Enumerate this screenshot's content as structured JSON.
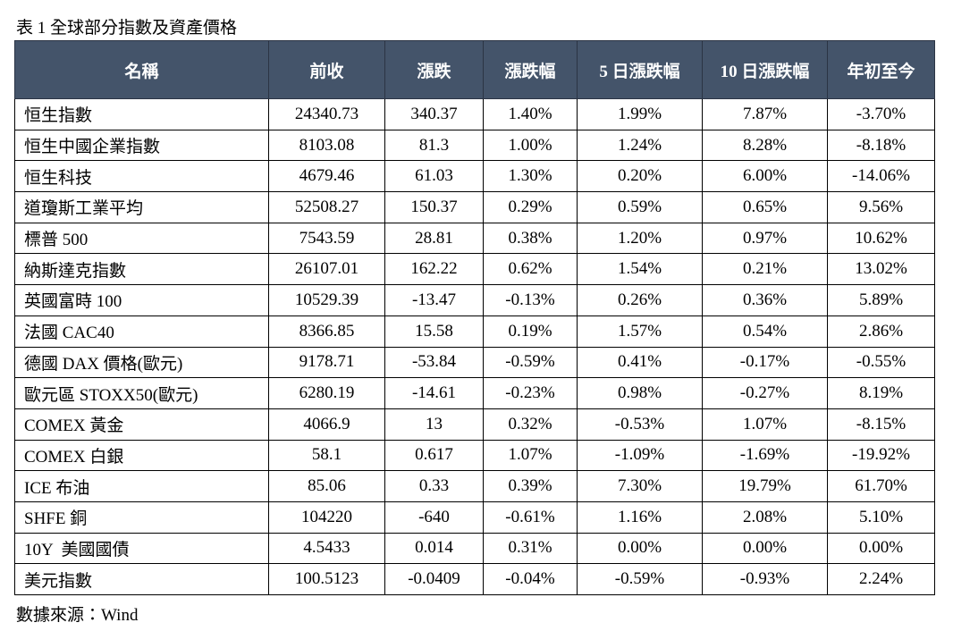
{
  "caption": "表 1 全球部分指數及資產價格",
  "table": {
    "header": [
      "名稱",
      "前收",
      "漲跌",
      "漲跌幅",
      "5 日漲跌幅",
      "10 日漲跌幅",
      "年初至今"
    ],
    "rows": [
      [
        "恒生指數",
        "24340.73",
        "340.37",
        "1.40%",
        "1.99%",
        "7.87%",
        "-3.70%"
      ],
      [
        "恒生中國企業指數",
        "8103.08",
        "81.3",
        "1.00%",
        "1.24%",
        "8.28%",
        "-8.18%"
      ],
      [
        "恒生科技",
        "4679.46",
        "61.03",
        "1.30%",
        "0.20%",
        "6.00%",
        "-14.06%"
      ],
      [
        "道瓊斯工業平均",
        "52508.27",
        "150.37",
        "0.29%",
        "0.59%",
        "0.65%",
        "9.56%"
      ],
      [
        "標普 500",
        "7543.59",
        "28.81",
        "0.38%",
        "1.20%",
        "0.97%",
        "10.62%"
      ],
      [
        "納斯達克指數",
        "26107.01",
        "162.22",
        "0.62%",
        "1.54%",
        "0.21%",
        "13.02%"
      ],
      [
        "英國富時 100",
        "10529.39",
        "-13.47",
        "-0.13%",
        "0.26%",
        "0.36%",
        "5.89%"
      ],
      [
        "法國 CAC40",
        "8366.85",
        "15.58",
        "0.19%",
        "1.57%",
        "0.54%",
        "2.86%"
      ],
      [
        "德國 DAX 價格(歐元)",
        "9178.71",
        "-53.84",
        "-0.59%",
        "0.41%",
        "-0.17%",
        "-0.55%"
      ],
      [
        "歐元區 STOXX50(歐元)",
        "6280.19",
        "-14.61",
        "-0.23%",
        "0.98%",
        "-0.27%",
        "8.19%"
      ],
      [
        "COMEX 黃金",
        "4066.9",
        "13",
        "0.32%",
        "-0.53%",
        "1.07%",
        "-8.15%"
      ],
      [
        "COMEX 白銀",
        "58.1",
        "0.617",
        "1.07%",
        "-1.09%",
        "-1.69%",
        "-19.92%"
      ],
      [
        "ICE 布油",
        "85.06",
        "0.33",
        "0.39%",
        "7.30%",
        "19.79%",
        "61.70%"
      ],
      [
        "SHFE 銅",
        "104220",
        "-640",
        "-0.61%",
        "1.16%",
        "2.08%",
        "5.10%"
      ],
      [
        "10Y  美國國債",
        "4.5433",
        "0.014",
        "0.31%",
        "0.00%",
        "0.00%",
        "0.00%"
      ],
      [
        "美元指數",
        "100.5123",
        "-0.0409",
        "-0.04%",
        "-0.59%",
        "-0.93%",
        "2.24%"
      ]
    ]
  },
  "source": "數據來源：Wind"
}
